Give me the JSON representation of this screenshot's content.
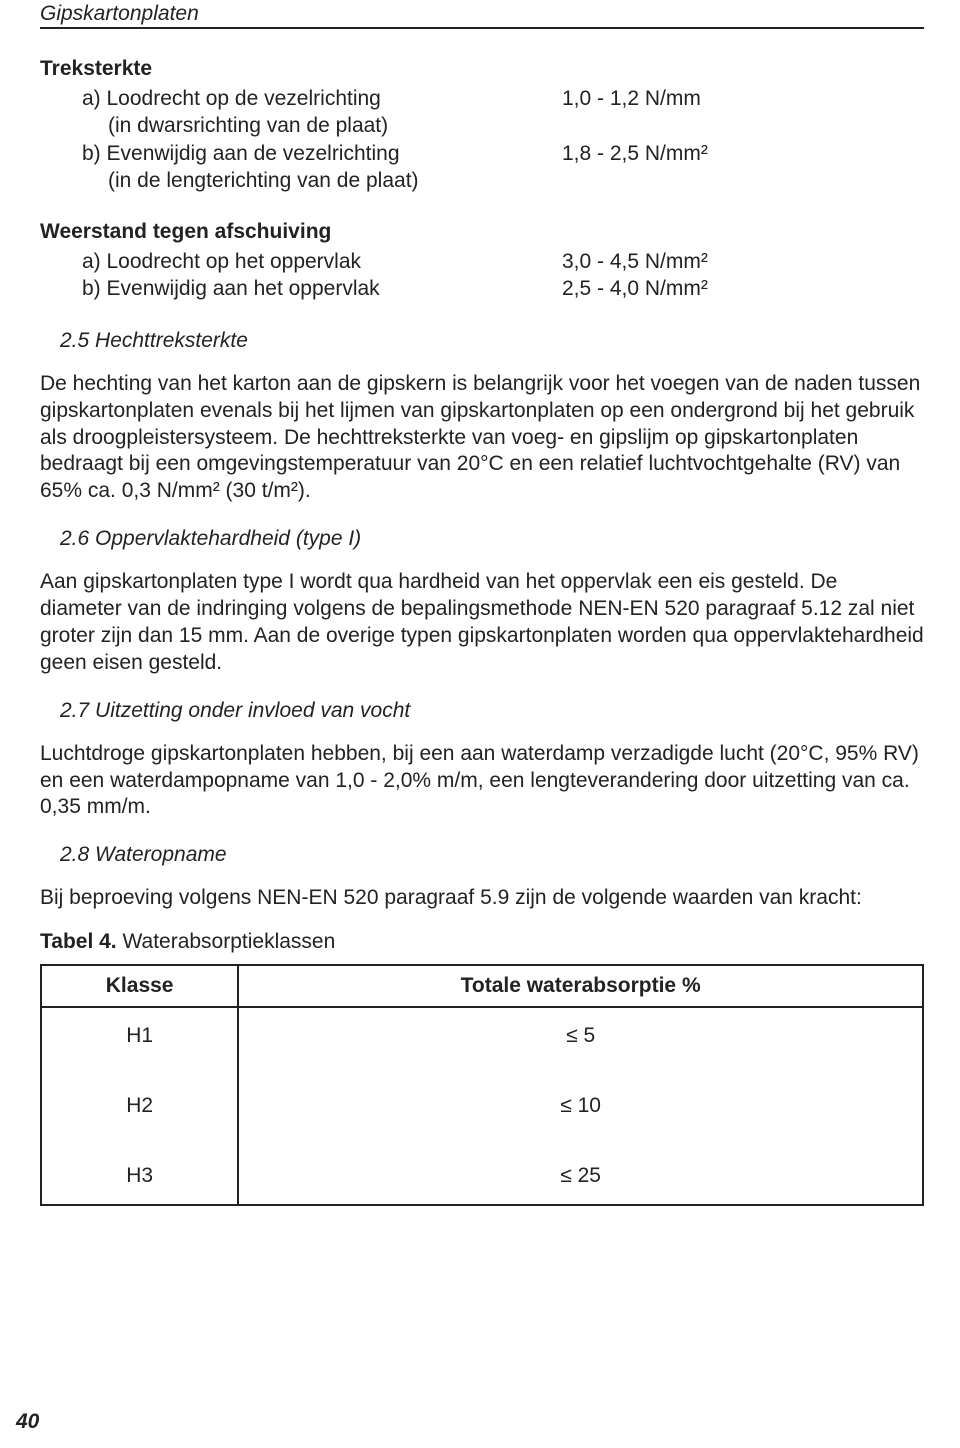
{
  "header": {
    "title": "Gipskartonplaten"
  },
  "treksterkte": {
    "title": "Treksterkte",
    "a_label": "a) Loodrecht op de vezelrichting",
    "a_value": "1,0 - 1,2 N/mm",
    "a_sub": "(in dwarsrichting van de plaat)",
    "b_label": "b) Evenwijdig aan de vezelrichting",
    "b_value": "1,8 - 2,5 N/mm²",
    "b_sub": "(in de lengterichting van de plaat)"
  },
  "weerstand": {
    "title": "Weerstand tegen afschuiving",
    "a_label": "a) Loodrecht op het oppervlak",
    "a_value": "3,0 - 4,5 N/mm²",
    "b_label": "b) Evenwijdig aan het oppervlak",
    "b_value": "2,5 - 4,0 N/mm²"
  },
  "s25": {
    "heading": "2.5  Hechttreksterkte",
    "text": "De hechting van het karton aan de gipskern is belangrijk voor het voegen van de naden tussen gipskartonplaten evenals bij het lijmen van gipskartonplaten op een ondergrond bij het gebruik als droogpleistersysteem. De hechttreksterkte van voeg- en gipslijm op gipskartonplaten bedraagt bij een omgevingstemperatuur van 20°C en een relatief luchtvochtgehalte (RV) van 65% ca. 0,3 N/mm² (30 t/m²)."
  },
  "s26": {
    "heading": "2.6  Oppervlaktehardheid (type I)",
    "text": "Aan gipskartonplaten type I wordt qua hardheid van het oppervlak een eis gesteld. De diameter van de indringing volgens de bepalingsmethode NEN-EN 520 paragraaf 5.12 zal niet groter zijn dan 15 mm. Aan de overige typen gipskartonplaten worden qua oppervlaktehardheid geen eisen gesteld."
  },
  "s27": {
    "heading": "2.7  Uitzetting onder invloed van vocht",
    "text": "Luchtdroge gipskartonplaten hebben, bij een aan waterdamp verzadigde lucht (20°C, 95% RV) en een waterdampopname van 1,0 - 2,0% m/m, een lengteverandering door uitzetting van ca. 0,35 mm/m."
  },
  "s28": {
    "heading": "2.8  Wateropname",
    "text": "Bij beproeving volgens NEN-EN 520 paragraaf 5.9 zijn de volgende waarden van kracht:"
  },
  "table4": {
    "caption_bold": "Tabel 4.",
    "caption_rest": " Waterabsorptieklassen",
    "col1": "Klasse",
    "col2": "Totale waterabsorptie %",
    "rows": [
      {
        "klasse": "H1",
        "val": "≤ 5"
      },
      {
        "klasse": "H2",
        "val": "≤ 10"
      },
      {
        "klasse": "H3",
        "val": "≤ 25"
      }
    ]
  },
  "page_number": "40"
}
